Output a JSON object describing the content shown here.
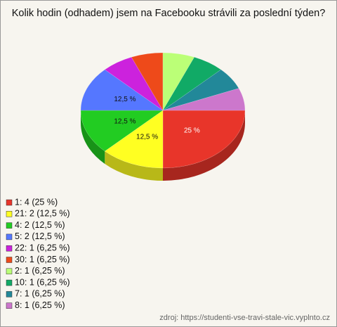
{
  "chart_data": {
    "type": "pie",
    "title": "Kolik hodin (odhadem) jsem na Facebooku strávili za poslední týden?",
    "categories": [
      "1: 4 (25 %)",
      "21: 2 (12,5 %)",
      "4: 2 (12,5 %)",
      "5: 2 (12,5 %)",
      "22: 1 (6,25 %)",
      "30: 1 (6,25 %)",
      "2: 1 (6,25 %)",
      "10: 1 (6,25 %)",
      "7: 1 (6,25 %)",
      "8: 1 (6,25 %)"
    ],
    "values": [
      25,
      12.5,
      12.5,
      12.5,
      6.25,
      6.25,
      6.25,
      6.25,
      6.25,
      6.25
    ],
    "value_labels": [
      "25 %",
      "12,5 %",
      "12,5 %",
      "12,5 %",
      null,
      null,
      null,
      null,
      null,
      null
    ],
    "colors": [
      "#e8352a",
      "#ffff22",
      "#22cc22",
      "#5577ff",
      "#cc22dd",
      "#ee4a1a",
      "#bbff77",
      "#11aa66",
      "#228899",
      "#cc77cc"
    ],
    "source": "zdroj: https://studenti-vse-travi-stale-vic.vyplnto.cz"
  }
}
